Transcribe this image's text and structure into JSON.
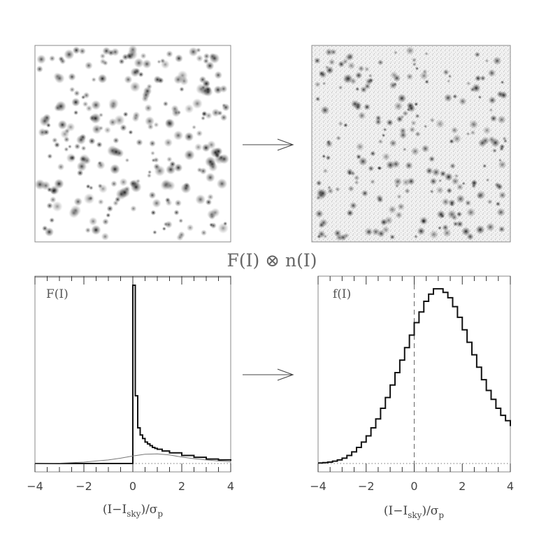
{
  "title": "F(I) ⊗ n(I)",
  "chart_data": [
    {
      "type": "area",
      "panel_label": "F(I)",
      "xlabel": "(I−I",
      "xlabel_sub": "sky",
      "xlabel_tail": ")/σ",
      "xlabel_sigma_sub": "p",
      "xlim": [
        -4,
        4
      ],
      "x_ticks": [
        -4,
        -2,
        0,
        2,
        4
      ],
      "x_tick_labels": [
        "−4",
        "−2",
        "0",
        "2",
        "4"
      ],
      "ylim": [
        0,
        1
      ],
      "series": [
        {
          "style": "histogram",
          "x": [
            -4.0,
            -0.1,
            0.0,
            0.1,
            0.2,
            0.3,
            0.4,
            0.5,
            0.6,
            0.7,
            0.8,
            0.9,
            1.0,
            1.2,
            1.5,
            2.0,
            2.5,
            3.0,
            3.5,
            4.0
          ],
          "y": [
            0.0,
            0.0,
            1.0,
            0.38,
            0.2,
            0.16,
            0.14,
            0.12,
            0.11,
            0.1,
            0.09,
            0.085,
            0.08,
            0.07,
            0.06,
            0.045,
            0.035,
            0.025,
            0.02,
            0.015
          ]
        },
        {
          "style": "smooth",
          "x": [
            -4.0,
            -3.0,
            -2.0,
            -1.0,
            -0.5,
            0.0,
            0.5,
            1.0,
            1.5,
            2.0,
            2.5,
            3.0,
            3.5,
            4.0
          ],
          "y": [
            0.0,
            0.002,
            0.008,
            0.02,
            0.03,
            0.042,
            0.052,
            0.054,
            0.048,
            0.036,
            0.027,
            0.02,
            0.014,
            0.01
          ]
        }
      ]
    },
    {
      "type": "area",
      "panel_label": "f(I)",
      "xlabel": "(I−I",
      "xlabel_sub": "sky",
      "xlabel_tail": ")/σ",
      "xlabel_sigma_sub": "p",
      "xlim": [
        -4,
        4
      ],
      "x_ticks": [
        -4,
        -2,
        0,
        2,
        4
      ],
      "x_tick_labels": [
        "−4",
        "−2",
        "0",
        "2",
        "4"
      ],
      "ylim": [
        0,
        1
      ],
      "series": [
        {
          "style": "histogram",
          "bin_width": 0.2,
          "x_start": -4.0,
          "y": [
            0.003,
            0.005,
            0.008,
            0.013,
            0.02,
            0.03,
            0.045,
            0.065,
            0.09,
            0.12,
            0.155,
            0.2,
            0.25,
            0.31,
            0.37,
            0.44,
            0.51,
            0.58,
            0.65,
            0.72,
            0.79,
            0.85,
            0.91,
            0.95,
            0.98,
            0.98,
            0.96,
            0.93,
            0.88,
            0.82,
            0.75,
            0.68,
            0.61,
            0.54,
            0.47,
            0.41,
            0.36,
            0.31,
            0.27,
            0.24,
            0.21
          ]
        }
      ]
    }
  ],
  "images": [
    {
      "kind": "simulated star field",
      "style": "sharp point sources"
    },
    {
      "kind": "simulated star field",
      "style": "noisy point sources"
    }
  ]
}
